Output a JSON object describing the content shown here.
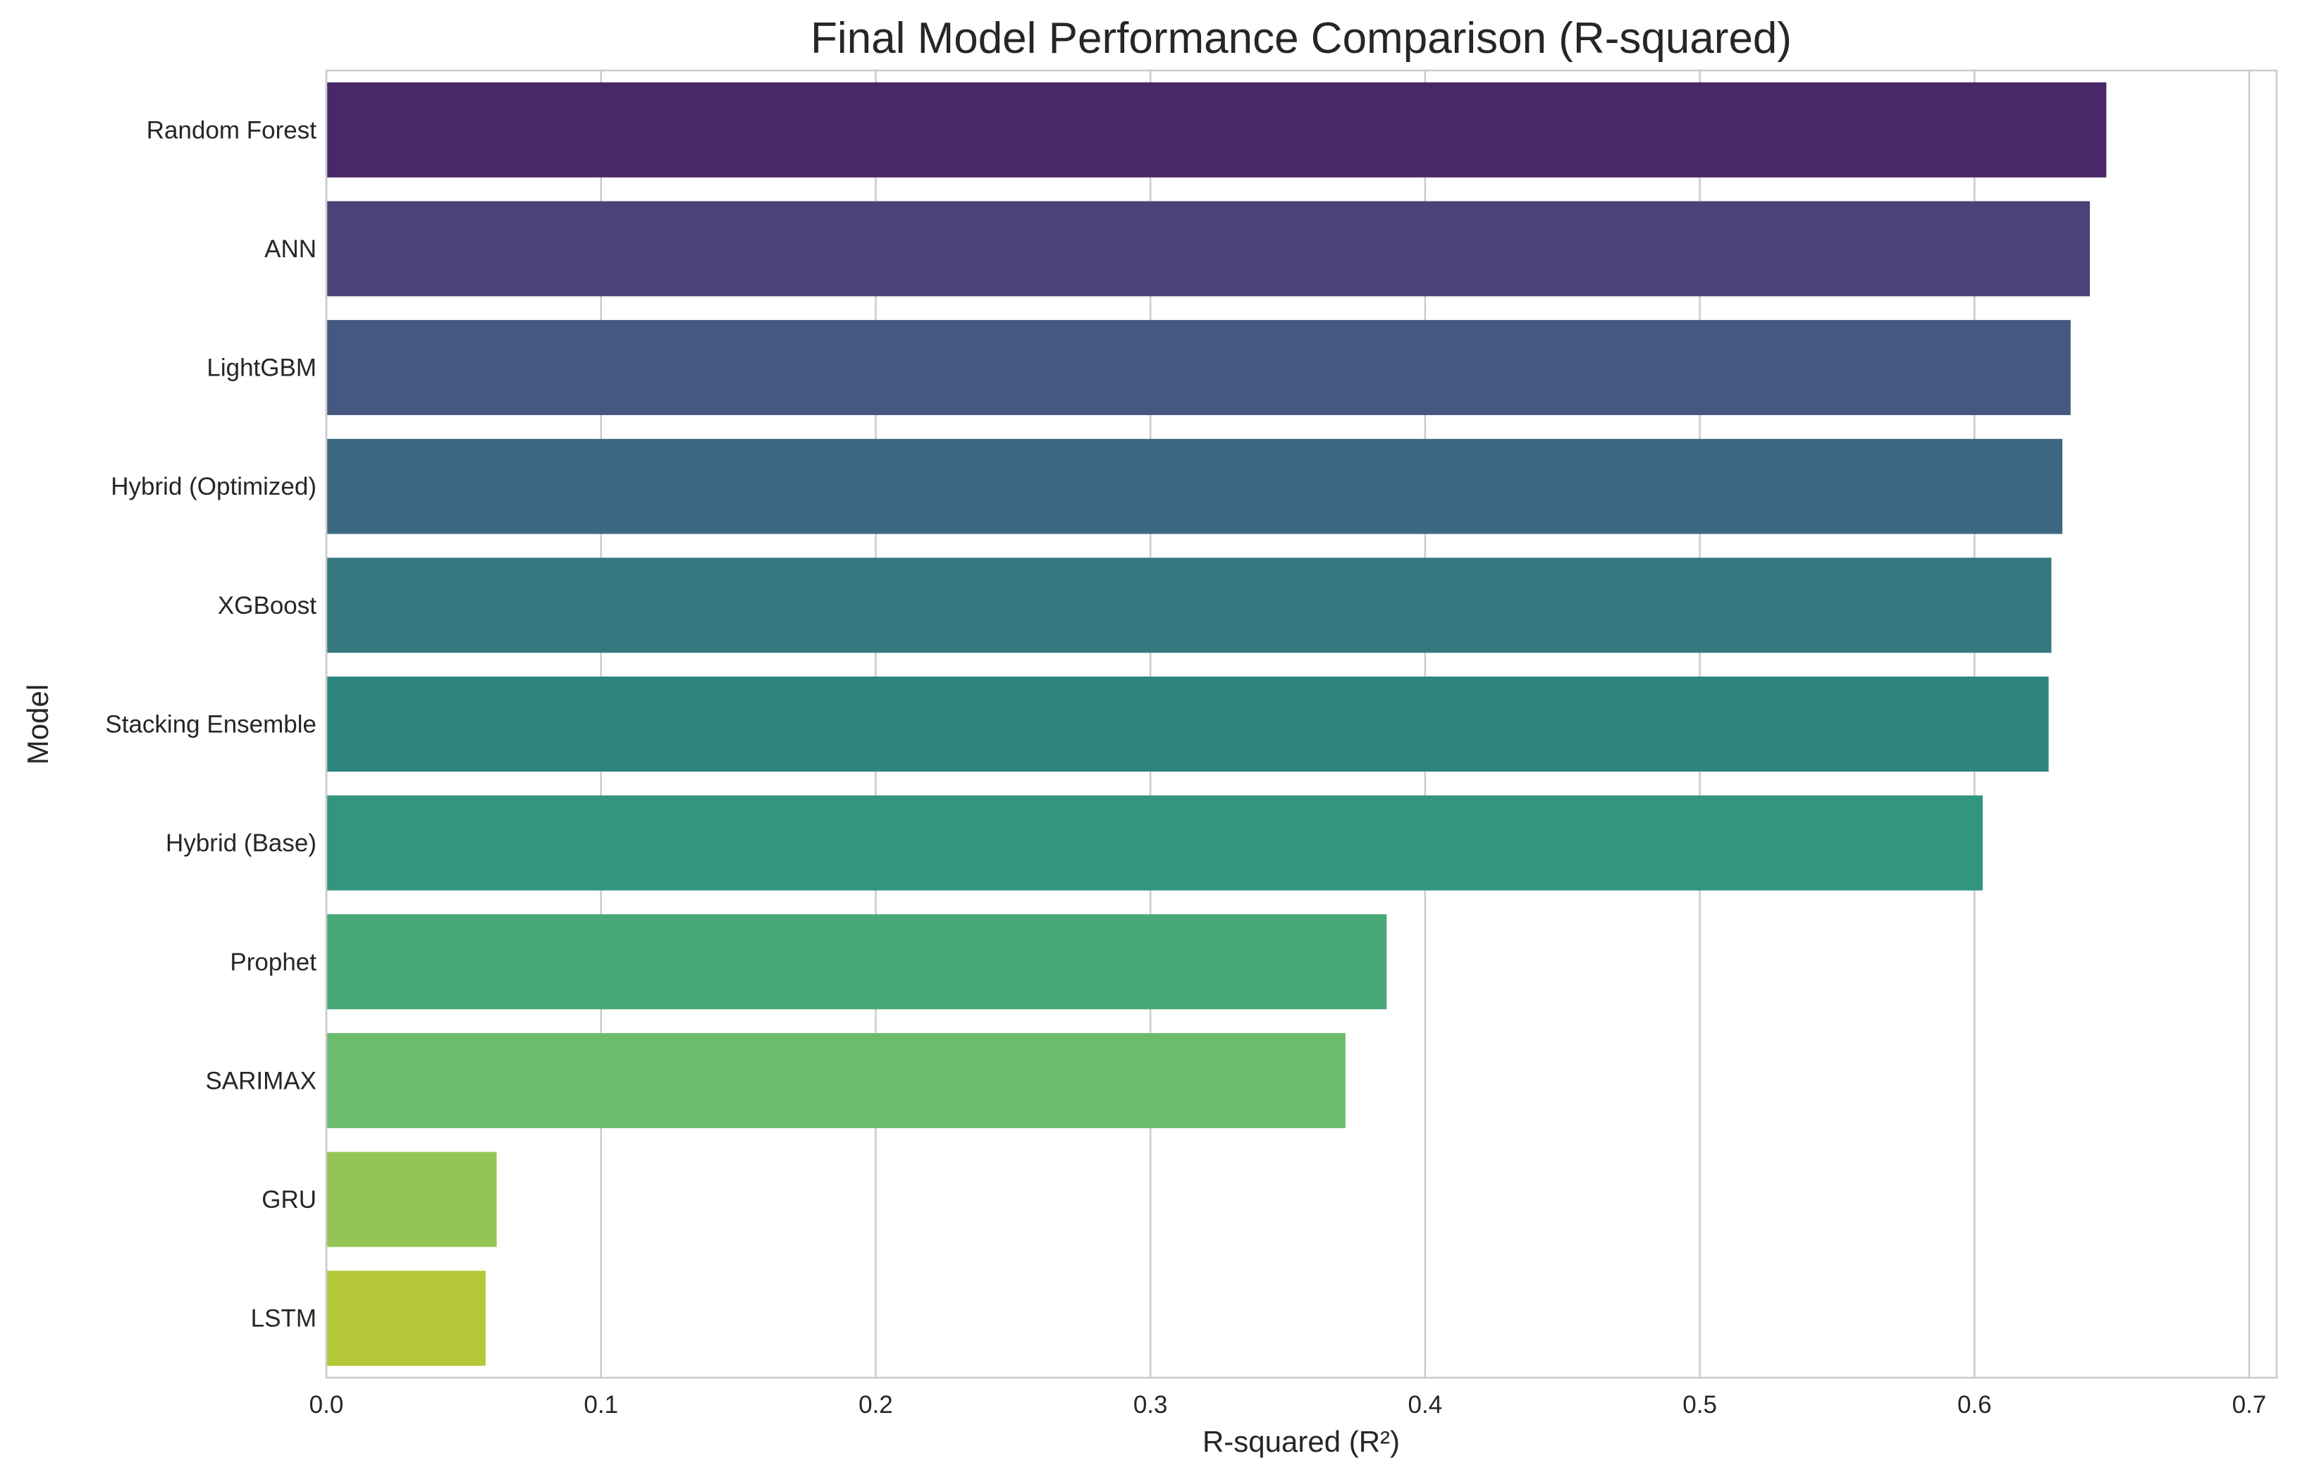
{
  "chart_data": {
    "type": "bar",
    "orientation": "horizontal",
    "title": "Final Model Performance Comparison (R-squared)",
    "xlabel": "R-squared (R²)",
    "ylabel": "Model",
    "xlim": [
      0,
      0.71
    ],
    "xticks": [
      "0.0",
      "0.1",
      "0.2",
      "0.3",
      "0.4",
      "0.5",
      "0.6",
      "0.7"
    ],
    "grid": true,
    "legend": "none",
    "categories": [
      "Random Forest",
      "ANN",
      "LightGBM",
      "Hybrid (Optimized)",
      "XGBoost",
      "Stacking Ensemble",
      "Hybrid (Base)",
      "Prophet",
      "SARIMAX",
      "GRU",
      "LSTM"
    ],
    "values": [
      0.648,
      0.642,
      0.635,
      0.632,
      0.628,
      0.627,
      0.603,
      0.386,
      0.371,
      0.062,
      0.058
    ],
    "colors": [
      "#482868",
      "#4b4279",
      "#455880",
      "#3e6881",
      "#36777f",
      "#2e857e",
      "#32957d",
      "#48a976",
      "#6bbc6d",
      "#94c455",
      "#b4c736"
    ]
  }
}
